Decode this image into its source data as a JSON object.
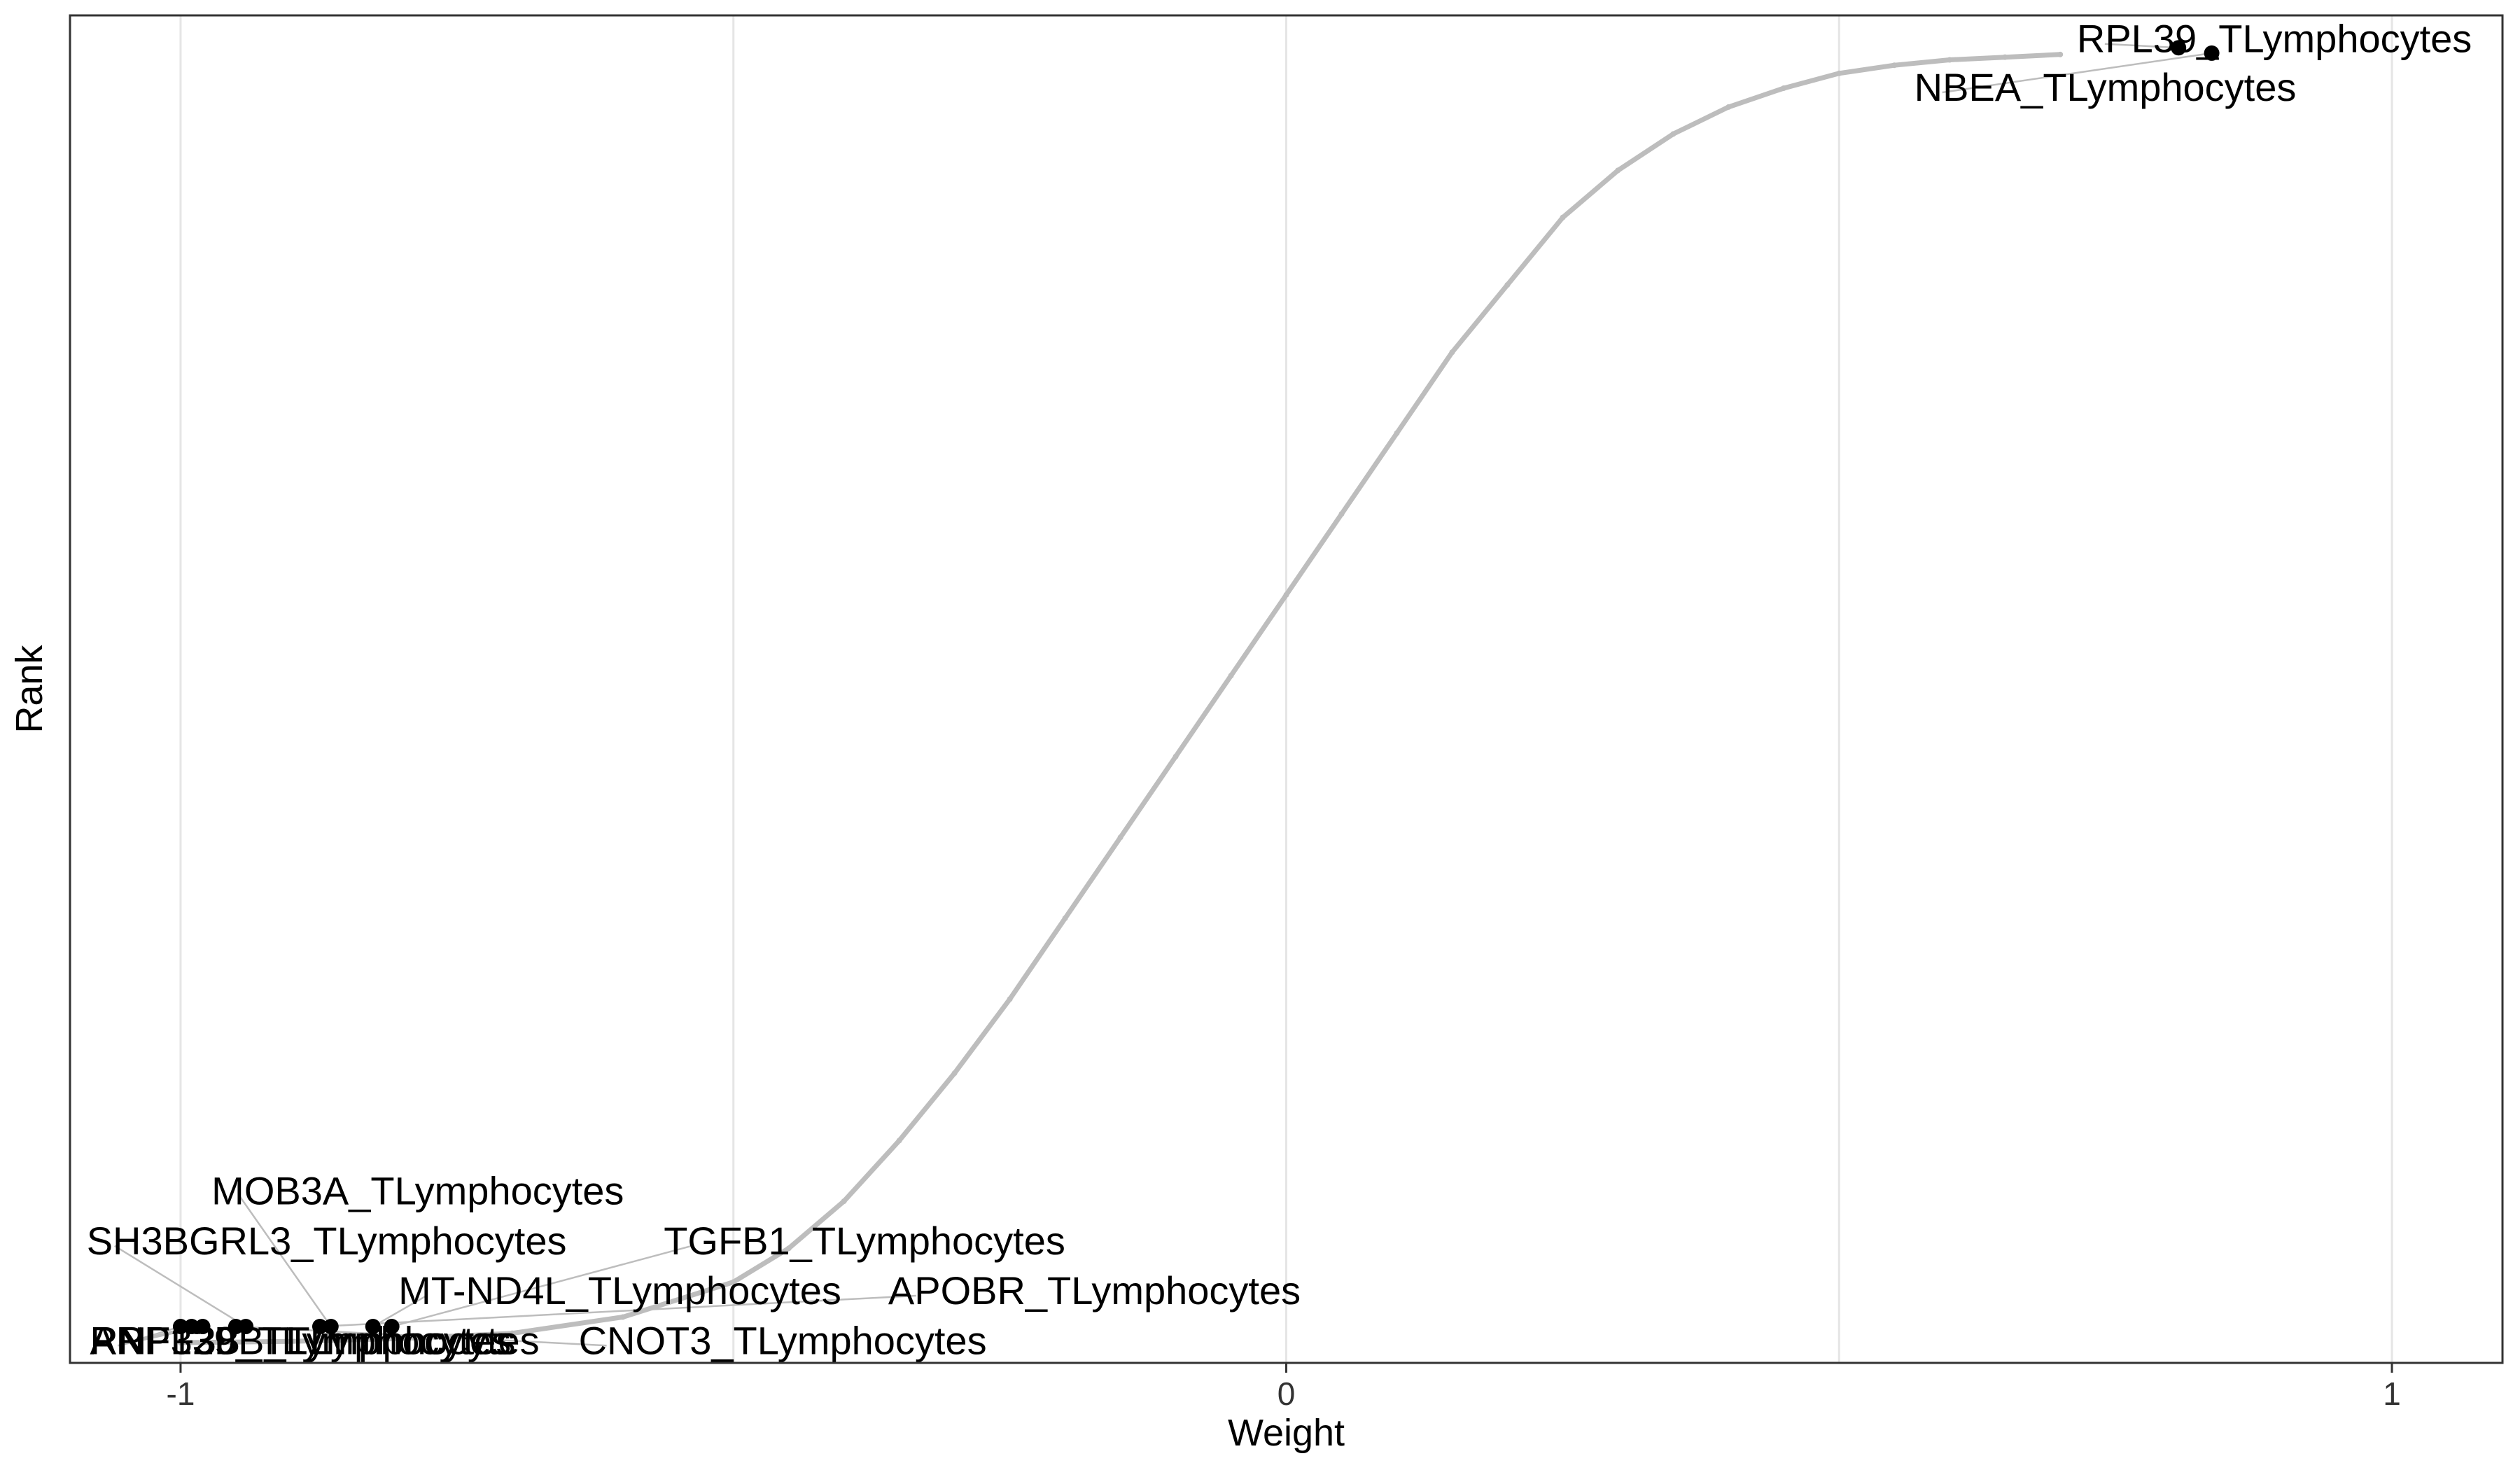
{
  "chart_data": {
    "type": "scatter",
    "title": "",
    "xlabel": "Weight",
    "ylabel": "Rank",
    "xlim": [
      -1.1,
      1.1
    ],
    "ylim": [
      0,
      1
    ],
    "x_ticks": [
      {
        "value": -1,
        "label": "-1"
      },
      {
        "value": 0,
        "label": "0"
      },
      {
        "value": 1,
        "label": "1"
      }
    ],
    "x_grid_values": [
      -1,
      -0.5,
      0,
      0.5,
      1
    ],
    "grid": "vertical",
    "colors": {
      "curve": "#bdbdbd",
      "highlight": "#000000",
      "grid": "#e5e5e5",
      "connector": "#bdbdbd",
      "border": "#333333"
    },
    "curve": [
      {
        "x": -1.0,
        "y": 0.015
      },
      {
        "x": -0.9,
        "y": 0.016
      },
      {
        "x": -0.8,
        "y": 0.018
      },
      {
        "x": -0.7,
        "y": 0.022
      },
      {
        "x": -0.6,
        "y": 0.034
      },
      {
        "x": -0.5,
        "y": 0.06
      },
      {
        "x": -0.45,
        "y": 0.085
      },
      {
        "x": -0.4,
        "y": 0.12
      },
      {
        "x": -0.35,
        "y": 0.165
      },
      {
        "x": -0.3,
        "y": 0.215
      },
      {
        "x": -0.25,
        "y": 0.27
      },
      {
        "x": -0.2,
        "y": 0.33
      },
      {
        "x": -0.15,
        "y": 0.39
      },
      {
        "x": -0.1,
        "y": 0.45
      },
      {
        "x": -0.05,
        "y": 0.51
      },
      {
        "x": 0.0,
        "y": 0.57
      },
      {
        "x": 0.05,
        "y": 0.63
      },
      {
        "x": 0.1,
        "y": 0.69
      },
      {
        "x": 0.15,
        "y": 0.75
      },
      {
        "x": 0.2,
        "y": 0.8
      },
      {
        "x": 0.25,
        "y": 0.85
      },
      {
        "x": 0.3,
        "y": 0.885
      },
      {
        "x": 0.35,
        "y": 0.912
      },
      {
        "x": 0.4,
        "y": 0.932
      },
      {
        "x": 0.45,
        "y": 0.946
      },
      {
        "x": 0.5,
        "y": 0.957
      },
      {
        "x": 0.55,
        "y": 0.963
      },
      {
        "x": 0.6,
        "y": 0.967
      },
      {
        "x": 0.65,
        "y": 0.969
      },
      {
        "x": 0.7,
        "y": 0.971
      }
    ],
    "highlighted_points": [
      {
        "label": "RPL39_TLymphocytes",
        "x": 0.807,
        "y": 0.976,
        "label_x": 0.715,
        "label_y": 0.983,
        "anchor": "start"
      },
      {
        "label": "NBEA_TLymphocytes",
        "x": 0.837,
        "y": 0.972,
        "label_x": 0.568,
        "label_y": 0.947,
        "anchor": "start"
      },
      {
        "label": "MOB3A_TLymphocytes",
        "x": -0.864,
        "y": 0.027,
        "label_x": -0.972,
        "label_y": 0.128,
        "anchor": "start"
      },
      {
        "label": "SH3BGRL3_TLymphocytes",
        "x": -0.941,
        "y": 0.027,
        "label_x": -1.085,
        "label_y": 0.091,
        "anchor": "start"
      },
      {
        "label": "TGFB1_TLymphocytes",
        "x": -0.809,
        "y": 0.027,
        "label_x": -0.563,
        "label_y": 0.091,
        "anchor": "start"
      },
      {
        "label": "MT-ND4L_TLymphocytes",
        "x": -0.826,
        "y": 0.027,
        "label_x": -0.803,
        "label_y": 0.054,
        "anchor": "start"
      },
      {
        "label": "APOBR_TLymphocytes",
        "x": -0.874,
        "y": 0.027,
        "label_x": -0.36,
        "label_y": 0.054,
        "anchor": "start"
      },
      {
        "label": "ANP32B_TLymphocytes",
        "x": -1.0,
        "y": 0.027,
        "label_x": -1.082,
        "label_y": 0.017,
        "anchor": "start"
      },
      {
        "label": "RNF139_TLymphocytes",
        "x": -0.99,
        "y": 0.027,
        "label_x": -1.082,
        "label_y": 0.017,
        "anchor": "start"
      },
      {
        "label": "PRPF38B_TLymphocytes",
        "x": -0.98,
        "y": 0.027,
        "label_x": -1.082,
        "label_y": 0.017,
        "anchor": "start"
      },
      {
        "label": "CNOT3_TLymphocytes",
        "x": -0.95,
        "y": 0.027,
        "label_x": -0.64,
        "label_y": 0.017,
        "anchor": "start"
      }
    ]
  }
}
